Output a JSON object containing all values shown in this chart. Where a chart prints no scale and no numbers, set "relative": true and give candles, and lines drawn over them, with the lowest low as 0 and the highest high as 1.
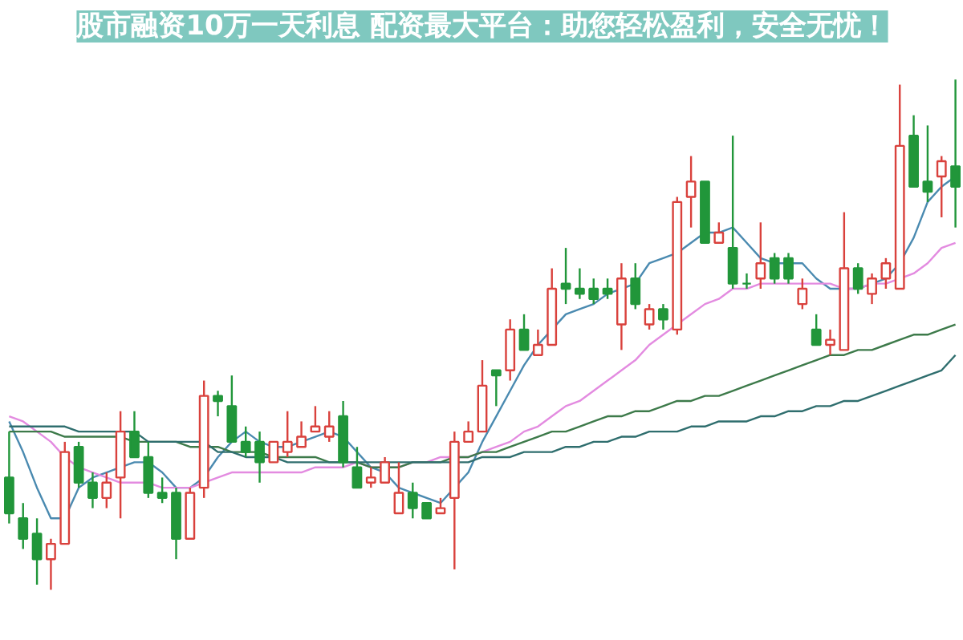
{
  "chart_data": {
    "type": "candlestick",
    "title": "股市融资10万一天利息 配资最大平台：助您轻松盈利，安全无忧！",
    "relative": true,
    "categories": [
      null,
      null,
      null,
      null,
      null,
      null,
      null,
      null,
      null,
      null,
      null,
      null,
      null,
      null,
      null,
      null,
      null,
      null,
      null,
      null,
      null,
      null,
      null,
      null,
      null,
      null,
      null,
      null,
      null,
      null,
      null,
      null,
      null,
      null,
      null,
      null,
      null,
      null,
      null,
      null,
      null,
      null,
      null,
      null,
      null,
      null,
      null,
      null,
      null,
      null,
      null,
      null,
      null,
      null,
      null,
      null,
      null,
      null,
      null,
      null,
      null,
      null,
      null,
      null,
      null,
      null,
      null,
      null,
      null
    ],
    "ohlc": [
      [
        0.22,
        0.31,
        0.13,
        0.15
      ],
      [
        0.14,
        0.17,
        0.08,
        0.1
      ],
      [
        0.11,
        0.14,
        0.01,
        0.06
      ],
      [
        0.06,
        0.1,
        0,
        0.09
      ],
      [
        0.09,
        0.29,
        0.09,
        0.27
      ],
      [
        0.28,
        0.29,
        0.2,
        0.21
      ],
      [
        0.21,
        0.23,
        0.16,
        0.18
      ],
      [
        0.18,
        0.23,
        0.16,
        0.21
      ],
      [
        0.22,
        0.35,
        0.14,
        0.31
      ],
      [
        0.31,
        0.35,
        0.26,
        0.26
      ],
      [
        0.26,
        0.29,
        0.18,
        0.19
      ],
      [
        0.19,
        0.22,
        0.17,
        0.18
      ],
      [
        0.19,
        0.2,
        0.06,
        0.1
      ],
      [
        0.1,
        0.2,
        0.1,
        0.19
      ],
      [
        0.2,
        0.41,
        0.18,
        0.38
      ],
      [
        0.38,
        0.39,
        0.34,
        0.37
      ],
      [
        0.36,
        0.42,
        0.29,
        0.29
      ],
      [
        0.29,
        0.32,
        0.26,
        0.27
      ],
      [
        0.29,
        0.31,
        0.21,
        0.25
      ],
      [
        0.25,
        0.29,
        0.25,
        0.29
      ],
      [
        0.27,
        0.35,
        0.26,
        0.29
      ],
      [
        0.28,
        0.33,
        0.28,
        0.3
      ],
      [
        0.31,
        0.36,
        0.31,
        0.32
      ],
      [
        0.3,
        0.35,
        0.29,
        0.32
      ],
      [
        0.34,
        0.37,
        0.24,
        0.25
      ],
      [
        0.24,
        0.28,
        0.2,
        0.2
      ],
      [
        0.21,
        0.24,
        0.2,
        0.22
      ],
      [
        0.21,
        0.26,
        0.21,
        0.25
      ],
      [
        0.15,
        0.25,
        0.15,
        0.19
      ],
      [
        0.19,
        0.21,
        0.14,
        0.16
      ],
      [
        0.17,
        0.17,
        0.14,
        0.14
      ],
      [
        0.15,
        0.18,
        0.15,
        0.16
      ],
      [
        0.18,
        0.31,
        0.04,
        0.29
      ],
      [
        0.29,
        0.33,
        0.29,
        0.31
      ],
      [
        0.31,
        0.45,
        0.31,
        0.4
      ],
      [
        0.43,
        0.43,
        0.36,
        0.42
      ],
      [
        0.43,
        0.53,
        0.41,
        0.51
      ],
      [
        0.51,
        0.54,
        0.47,
        0.47
      ],
      [
        0.46,
        0.51,
        0.46,
        0.48
      ],
      [
        0.48,
        0.63,
        0.48,
        0.59
      ],
      [
        0.6,
        0.67,
        0.56,
        0.59
      ],
      [
        0.59,
        0.63,
        0.57,
        0.58
      ],
      [
        0.59,
        0.61,
        0.56,
        0.57
      ],
      [
        0.59,
        0.61,
        0.57,
        0.58
      ],
      [
        0.52,
        0.64,
        0.47,
        0.61
      ],
      [
        0.61,
        0.64,
        0.55,
        0.56
      ],
      [
        0.52,
        0.56,
        0.51,
        0.55
      ],
      [
        0.55,
        0.56,
        0.51,
        0.53
      ],
      [
        0.51,
        0.77,
        0.5,
        0.76
      ],
      [
        0.77,
        0.85,
        0.71,
        0.8
      ],
      [
        0.8,
        0.8,
        0.68,
        0.68
      ],
      [
        0.68,
        0.72,
        0.68,
        0.7
      ],
      [
        0.67,
        0.89,
        0.59,
        0.6
      ],
      [
        0.6,
        0.62,
        0.59,
        0.6
      ],
      [
        0.61,
        0.72,
        0.59,
        0.64
      ],
      [
        0.65,
        0.66,
        0.6,
        0.61
      ],
      [
        0.65,
        0.66,
        0.6,
        0.61
      ],
      [
        0.56,
        0.61,
        0.55,
        0.59
      ],
      [
        0.51,
        0.54,
        0.48,
        0.48
      ],
      [
        0.48,
        0.51,
        0.46,
        0.49
      ],
      [
        0.47,
        0.74,
        0.47,
        0.63
      ],
      [
        0.63,
        0.64,
        0.58,
        0.59
      ],
      [
        0.58,
        0.62,
        0.56,
        0.61
      ],
      [
        0.61,
        0.65,
        0.59,
        0.64
      ],
      [
        0.59,
        0.99,
        0.59,
        0.87
      ],
      [
        0.89,
        0.93,
        0.79,
        0.79
      ],
      [
        0.8,
        0.91,
        0.76,
        0.78
      ],
      [
        0.81,
        0.85,
        0.73,
        0.84
      ],
      [
        0.83,
        1,
        0.71,
        0.79
      ]
    ],
    "colors": [
      "#21963a",
      "#21963a",
      "#21963a",
      "#d9413c",
      "#d9413c",
      "#21963a",
      "#21963a",
      "#d9413c",
      "#d9413c",
      "#21963a",
      "#21963a",
      "#21963a",
      "#21963a",
      "#d9413c",
      "#d9413c",
      "#21963a",
      "#21963a",
      "#21963a",
      "#21963a",
      "#d9413c",
      "#d9413c",
      "#d9413c",
      "#d9413c",
      "#d9413c",
      "#21963a",
      "#21963a",
      "#d9413c",
      "#d9413c",
      "#d9413c",
      "#21963a",
      "#21963a",
      "#d9413c",
      "#d9413c",
      "#d9413c",
      "#d9413c",
      "#21963a",
      "#d9413c",
      "#21963a",
      "#d9413c",
      "#d9413c",
      "#21963a",
      "#21963a",
      "#21963a",
      "#21963a",
      "#d9413c",
      "#21963a",
      "#d9413c",
      "#21963a",
      "#d9413c",
      "#d9413c",
      "#21963a",
      "#d9413c",
      "#21963a",
      "#21963a",
      "#d9413c",
      "#21963a",
      "#21963a",
      "#d9413c",
      "#21963a",
      "#d9413c",
      "#d9413c",
      "#21963a",
      "#d9413c",
      "#d9413c",
      "#d9413c",
      "#21963a",
      "#21963a",
      "#d9413c",
      "#21963a"
    ],
    "series": [
      {
        "type": "line",
        "color": "#4a8ab0",
        "values": [
          0.33,
          0.27,
          0.2,
          0.14,
          0.14,
          0.2,
          0.22,
          0.23,
          0.24,
          0.25,
          0.25,
          0.23,
          0.2,
          0.2,
          0.22,
          0.26,
          0.29,
          0.31,
          0.29,
          0.28,
          0.28,
          0.29,
          0.3,
          0.31,
          0.3,
          0.27,
          0.24,
          0.23,
          0.2,
          0.19,
          0.18,
          0.17,
          0.2,
          0.23,
          0.29,
          0.34,
          0.39,
          0.44,
          0.48,
          0.51,
          0.54,
          0.55,
          0.56,
          0.58,
          0.59,
          0.6,
          0.64,
          0.65,
          0.66,
          0.68,
          0.7,
          0.7,
          0.71,
          0.68,
          0.65,
          0.64,
          0.64,
          0.64,
          0.61,
          0.59,
          0.59,
          0.59,
          0.6,
          0.61,
          0.64,
          0.69,
          0.76,
          0.79,
          0.81
        ]
      },
      {
        "type": "line",
        "color": "#e38be0",
        "values": [
          0.34,
          0.33,
          0.31,
          0.29,
          0.26,
          0.24,
          0.23,
          0.22,
          0.21,
          0.21,
          0.21,
          0.2,
          0.2,
          0.2,
          0.21,
          0.22,
          0.23,
          0.23,
          0.23,
          0.23,
          0.23,
          0.23,
          0.24,
          0.24,
          0.24,
          0.25,
          0.24,
          0.24,
          0.24,
          0.25,
          0.25,
          0.26,
          0.26,
          0.26,
          0.27,
          0.28,
          0.29,
          0.31,
          0.32,
          0.34,
          0.36,
          0.37,
          0.39,
          0.41,
          0.43,
          0.45,
          0.48,
          0.5,
          0.52,
          0.54,
          0.56,
          0.57,
          0.59,
          0.59,
          0.6,
          0.6,
          0.6,
          0.6,
          0.6,
          0.6,
          0.59,
          0.59,
          0.6,
          0.6,
          0.61,
          0.62,
          0.64,
          0.67,
          0.68
        ]
      },
      {
        "type": "line",
        "color": "#3d7a4a",
        "values": [
          0.31,
          0.31,
          0.31,
          0.31,
          0.3,
          0.3,
          0.3,
          0.3,
          0.3,
          0.29,
          0.29,
          0.29,
          0.29,
          0.28,
          0.28,
          0.28,
          0.27,
          0.27,
          0.27,
          0.26,
          0.26,
          0.26,
          0.26,
          0.25,
          0.25,
          0.25,
          0.24,
          0.24,
          0.24,
          0.25,
          0.25,
          0.25,
          0.26,
          0.26,
          0.27,
          0.27,
          0.28,
          0.29,
          0.3,
          0.31,
          0.31,
          0.32,
          0.33,
          0.34,
          0.34,
          0.35,
          0.35,
          0.36,
          0.37,
          0.37,
          0.38,
          0.38,
          0.39,
          0.4,
          0.41,
          0.42,
          0.43,
          0.44,
          0.45,
          0.46,
          0.46,
          0.47,
          0.47,
          0.48,
          0.49,
          0.5,
          0.5,
          0.51,
          0.52
        ]
      },
      {
        "type": "line",
        "color": "#2f6e6e",
        "values": [
          0.32,
          0.32,
          0.32,
          0.32,
          0.32,
          0.31,
          0.31,
          0.31,
          0.31,
          0.31,
          0.29,
          0.29,
          0.29,
          0.29,
          0.29,
          0.27,
          0.27,
          0.26,
          0.26,
          0.26,
          0.25,
          0.25,
          0.25,
          0.25,
          0.25,
          0.25,
          0.25,
          0.25,
          0.25,
          0.25,
          0.25,
          0.25,
          0.25,
          0.25,
          0.26,
          0.26,
          0.26,
          0.27,
          0.27,
          0.27,
          0.28,
          0.28,
          0.29,
          0.29,
          0.3,
          0.3,
          0.31,
          0.31,
          0.31,
          0.32,
          0.32,
          0.33,
          0.33,
          0.33,
          0.34,
          0.34,
          0.35,
          0.35,
          0.36,
          0.36,
          0.37,
          0.37,
          0.38,
          0.39,
          0.4,
          0.41,
          0.42,
          0.43,
          0.46
        ]
      }
    ]
  }
}
